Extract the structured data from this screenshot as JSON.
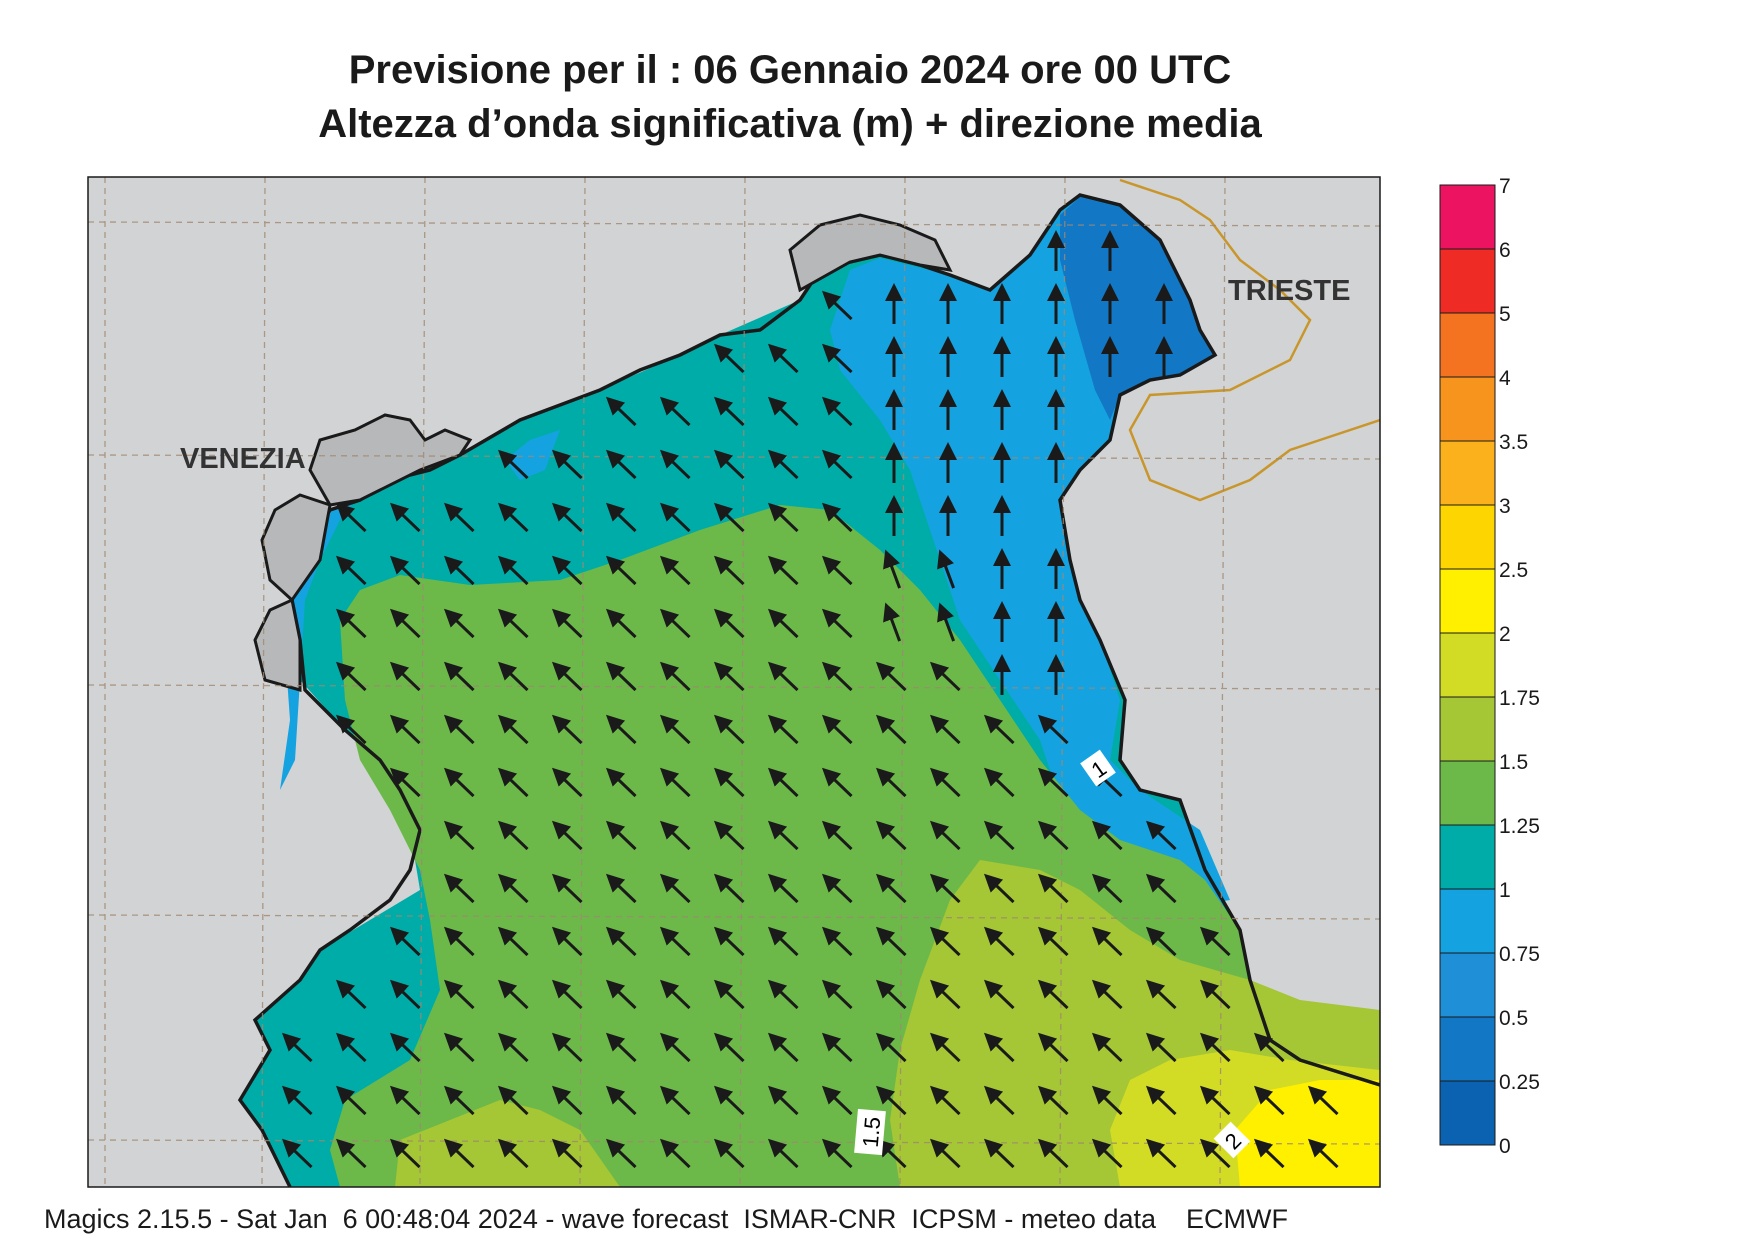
{
  "title_line1": "Previsione per il  :  06  Gennaio  2024   ore 00 UTC",
  "title_line2": "Altezza d’onda significativa (m) + direzione media",
  "footer": "Magics 2.15.5 - Sat Jan  6 00:48:04 2024 - wave forecast  ISMAR-CNR  ICPSM - meteo data    ECMWF",
  "cities": [
    {
      "name": "VENEZIA"
    },
    {
      "name": "TRIESTE"
    }
  ],
  "contour_labels": [
    "1",
    "1.5",
    "2"
  ],
  "legend": {
    "levels": [
      "0",
      "0.25",
      "0.5",
      "0.75",
      "1",
      "1.25",
      "1.5",
      "1.75",
      "2",
      "2.5",
      "3",
      "3.5",
      "4",
      "5",
      "6",
      "7"
    ],
    "colors": [
      "#0b62b0",
      "#1278c6",
      "#1f8fd8",
      "#14a3e0",
      "#00aca8",
      "#6cb94a",
      "#a5c635",
      "#d3dc24",
      "#fff000",
      "#fdd500",
      "#fbb11c",
      "#f6941d",
      "#f37321",
      "#ee2b24",
      "#ec1461"
    ]
  },
  "colors": {
    "land": "#d2d3d5",
    "grid": "#a08870",
    "border": "#c8962a",
    "arrow": "#1a1a1a"
  },
  "wave_direction": "NW (toward upper-left) over most of the basin; N (toward top) in the north-east sector"
}
